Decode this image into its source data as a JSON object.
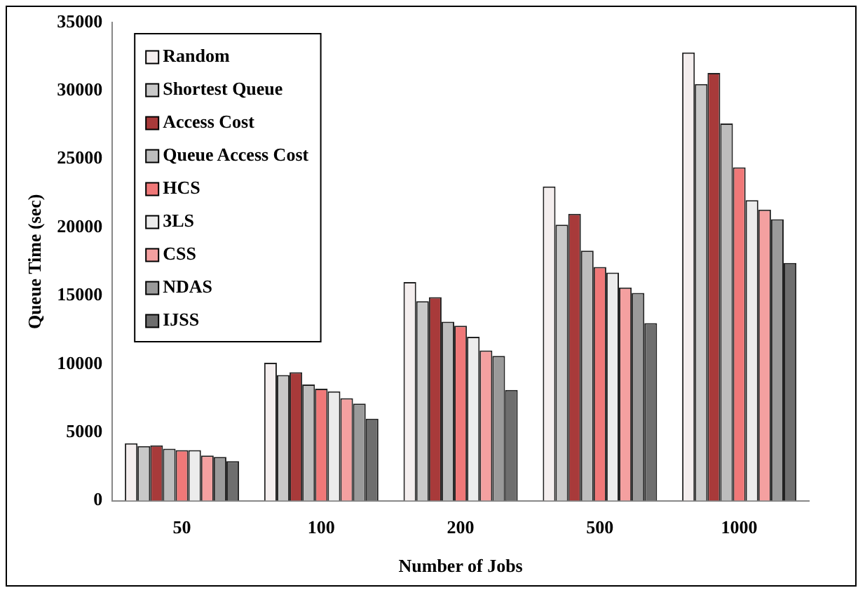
{
  "chart_data": {
    "type": "bar",
    "xlabel": "Number of Jobs",
    "ylabel": "Queue Time (sec)",
    "categories": [
      "50",
      "100",
      "200",
      "500",
      "1000"
    ],
    "series": [
      {
        "name": "Random",
        "color": "#f4eeee",
        "values": [
          4200,
          10100,
          16000,
          23000,
          32800
        ]
      },
      {
        "name": "Shortest Queue",
        "color": "#c8c8c8",
        "values": [
          4000,
          9200,
          14600,
          20200,
          30500
        ]
      },
      {
        "name": "Access Cost",
        "color": "#a83a3a",
        "values": [
          4050,
          9400,
          14900,
          21000,
          31300
        ]
      },
      {
        "name": "Queue Access Cost",
        "color": "#bdbdbd",
        "values": [
          3800,
          8500,
          13100,
          18300,
          27600
        ]
      },
      {
        "name": "HCS",
        "color": "#f07878",
        "values": [
          3700,
          8200,
          12800,
          17100,
          24400
        ]
      },
      {
        "name": "3LS",
        "color": "#ececec",
        "values": [
          3700,
          8000,
          12000,
          16700,
          22000
        ]
      },
      {
        "name": "CSS",
        "color": "#f4a0a0",
        "values": [
          3300,
          7500,
          11000,
          15600,
          21300
        ]
      },
      {
        "name": "NDAS",
        "color": "#9a9a9a",
        "values": [
          3200,
          7100,
          10600,
          15200,
          20600
        ]
      },
      {
        "name": "IJSS",
        "color": "#6e6e6e",
        "values": [
          2900,
          6000,
          8100,
          13000,
          17400
        ]
      }
    ],
    "ylim": [
      0,
      35000
    ],
    "yticks": [
      0,
      5000,
      10000,
      15000,
      20000,
      25000,
      30000,
      35000
    ],
    "grid": false,
    "legend": "top left"
  }
}
